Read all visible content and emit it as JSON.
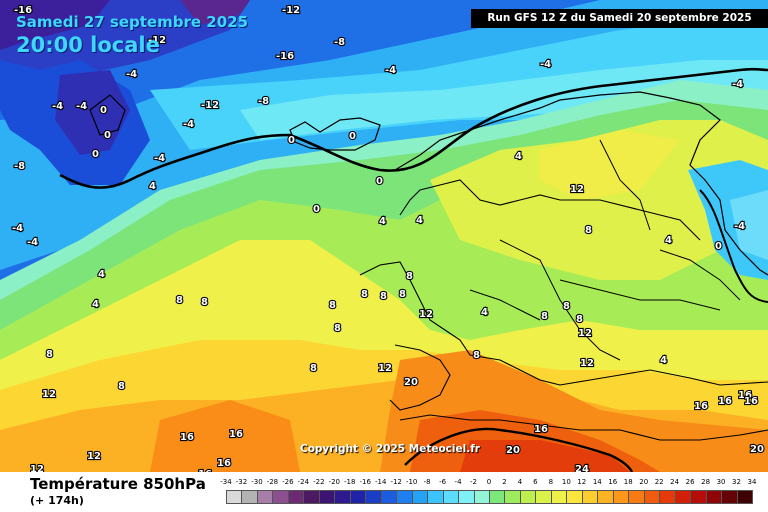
{
  "map_header": {
    "date": "Samedi 27 septembre 2025",
    "local_time": "20:00 locale",
    "run_info": "Run GFS 12 Z du Samedi 20 septembre 2025"
  },
  "copyright": "Copyright © 2025 Meteociel.fr",
  "variable": {
    "name": "Température 850hPa",
    "lead": "(+ 174h)"
  },
  "legend": {
    "labels": [
      "-34",
      "-32",
      "-30",
      "-28",
      "-26",
      "-24",
      "-22",
      "-20",
      "-18",
      "-16",
      "-14",
      "-12",
      "-10",
      "-8",
      "-6",
      "-4",
      "-2",
      "0",
      "2",
      "4",
      "6",
      "8",
      "10",
      "12",
      "14",
      "16",
      "18",
      "20",
      "22",
      "24",
      "26",
      "28",
      "30",
      "32",
      "34"
    ],
    "colors": [
      "#d9d9d9",
      "#b3b3b3",
      "#a77ea8",
      "#8c4f90",
      "#6b2a73",
      "#4c1a62",
      "#3c1573",
      "#2d1a8e",
      "#1f23aa",
      "#1b3fc4",
      "#1c5de0",
      "#1f7ff0",
      "#24a2f6",
      "#3bc3fb",
      "#5bdcfc",
      "#7ff0f7",
      "#93f5d8",
      "#7ce87a",
      "#9cec5e",
      "#bdf04f",
      "#dbf24a",
      "#f0f04a",
      "#fbe63e",
      "#fccd2f",
      "#fcb323",
      "#fb971a",
      "#f77a13",
      "#f05b0d",
      "#e53b0a",
      "#d21f08",
      "#b50d08",
      "#8e0407",
      "#650306",
      "#3e0205"
    ]
  },
  "isotherm_labels": [
    {
      "text": "-16",
      "kind": "cold"
    },
    {
      "text": "-12",
      "kind": "cold"
    },
    {
      "text": "-8",
      "kind": "cold"
    },
    {
      "text": "-4",
      "kind": "cold"
    },
    {
      "text": "0",
      "kind": "zero"
    },
    {
      "text": "4",
      "kind": "mild"
    },
    {
      "text": "8",
      "kind": "mild"
    },
    {
      "text": "12",
      "kind": "mild"
    },
    {
      "text": "16",
      "kind": "warm"
    },
    {
      "text": "20",
      "kind": "warm"
    },
    {
      "text": "24",
      "kind": "warm"
    }
  ]
}
